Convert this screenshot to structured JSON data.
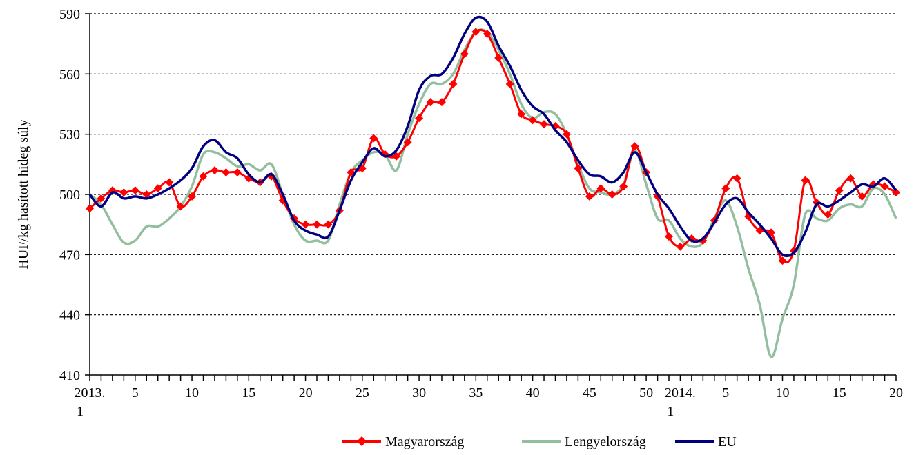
{
  "chart_data": {
    "type": "line",
    "y_label": "HUF/kg hasított hideg súly",
    "categories": [
      "2013.\n1",
      null,
      null,
      null,
      "5",
      null,
      null,
      null,
      null,
      "10",
      null,
      null,
      null,
      null,
      "15",
      null,
      null,
      null,
      null,
      "20",
      null,
      null,
      null,
      null,
      "25",
      null,
      null,
      null,
      null,
      "30",
      null,
      null,
      null,
      null,
      "35",
      null,
      null,
      null,
      null,
      "40",
      null,
      null,
      null,
      null,
      "45",
      null,
      null,
      null,
      null,
      "50",
      null,
      null,
      "2014.\n1",
      null,
      null,
      null,
      "5",
      null,
      null,
      null,
      null,
      "10",
      null,
      null,
      null,
      null,
      "15",
      null,
      null,
      null,
      null,
      "20"
    ],
    "series": [
      {
        "name": "Magyarország",
        "color": "#ff0000",
        "marker": "diamond",
        "values": [
          493,
          498,
          502,
          501,
          502,
          500,
          503,
          506,
          494,
          499,
          509,
          512,
          511,
          511,
          508,
          506,
          509,
          497,
          488,
          485,
          485,
          485,
          492,
          511,
          513,
          528,
          520,
          519,
          526,
          538,
          546,
          546,
          555,
          570,
          581,
          580,
          568,
          555,
          540,
          537,
          535,
          534,
          530,
          513,
          499,
          503,
          500,
          504,
          524,
          511,
          499,
          479,
          474,
          478,
          477,
          487,
          503,
          508,
          489,
          482,
          481,
          467,
          472,
          507,
          496,
          490,
          502,
          508,
          499,
          505,
          504,
          501
        ]
      },
      {
        "name": "Lengyelország",
        "color": "#93bfa0",
        "values": [
          500,
          495,
          485,
          476,
          477,
          484,
          484,
          488,
          494,
          504,
          520,
          521,
          518,
          514,
          515,
          512,
          515,
          500,
          485,
          477,
          477,
          477,
          495,
          511,
          517,
          521,
          520,
          512,
          530,
          545,
          555,
          555,
          560,
          572,
          581,
          581,
          572,
          560,
          545,
          538,
          541,
          540,
          530,
          515,
          503,
          501,
          500,
          505,
          522,
          505,
          488,
          487,
          478,
          474,
          476,
          488,
          497,
          484,
          463,
          445,
          419,
          438,
          455,
          490,
          488,
          487,
          493,
          495,
          494,
          503,
          500,
          488
        ]
      },
      {
        "name": "EU",
        "color": "#000080",
        "values": [
          500,
          494,
          501,
          498,
          499,
          498,
          500,
          503,
          507,
          513,
          524,
          527,
          521,
          518,
          510,
          506,
          510,
          500,
          487,
          482,
          480,
          479,
          492,
          507,
          516,
          523,
          519,
          522,
          534,
          552,
          559,
          560,
          568,
          580,
          588,
          586,
          574,
          564,
          552,
          544,
          540,
          532,
          526,
          517,
          510,
          509,
          506,
          511,
          521,
          511,
          500,
          493,
          484,
          477,
          478,
          486,
          495,
          498,
          491,
          485,
          478,
          470,
          471,
          481,
          495,
          494,
          497,
          501,
          505,
          504,
          508,
          502
        ]
      }
    ],
    "ylim": [
      410,
      590
    ],
    "yticks": [
      410,
      440,
      470,
      500,
      530,
      560,
      590
    ],
    "grid": true,
    "legend": "bottom"
  }
}
